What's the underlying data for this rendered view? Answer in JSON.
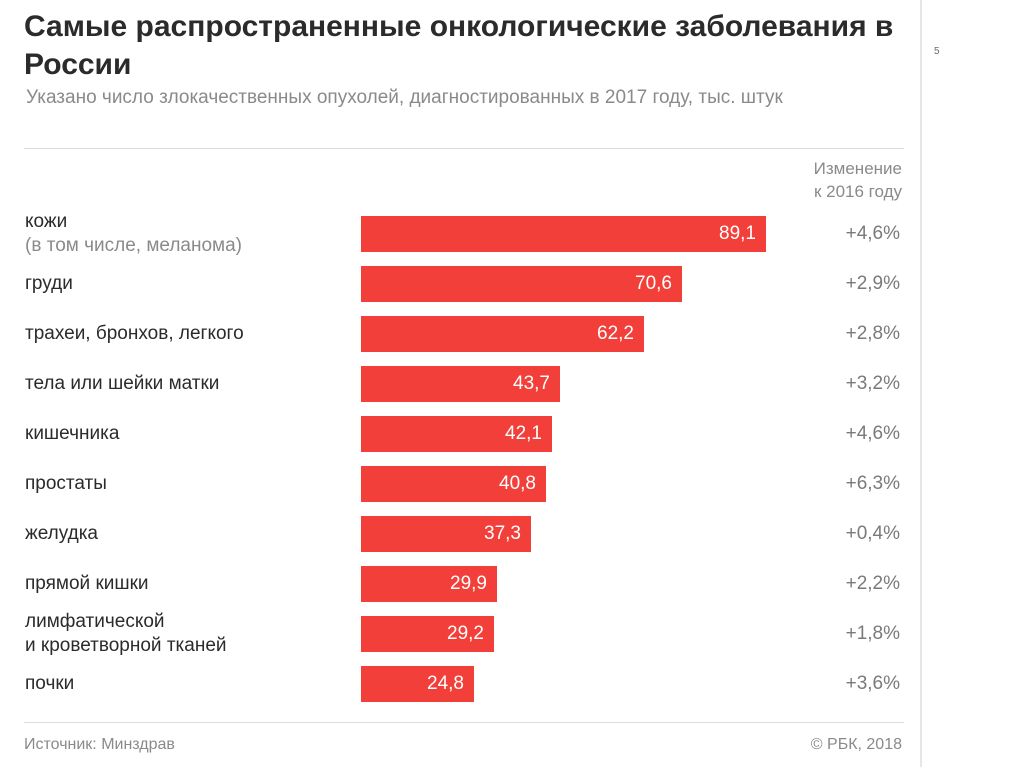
{
  "page_number": "5",
  "chart_data": {
    "type": "bar",
    "orientation": "horizontal",
    "title": "Самые распространенные онкологические заболевания в России",
    "subtitle": "Указано число злокачественных опухолей, диагностированных в 2017 году, тыс. штук",
    "change_header": [
      "Изменение",
      "к 2016 году"
    ],
    "categories": [
      {
        "label": "кожи",
        "sublabel": "(в том числе, меланома)"
      },
      {
        "label": "груди"
      },
      {
        "label": "трахеи, бронхов, легкого"
      },
      {
        "label": "тела или шейки матки"
      },
      {
        "label": "кишечника"
      },
      {
        "label": "простаты"
      },
      {
        "label": "желудка"
      },
      {
        "label": "прямой кишки"
      },
      {
        "label": "лимфатической",
        "label2": "и кроветворной тканей"
      },
      {
        "label": "почки"
      }
    ],
    "values": [
      89.1,
      70.6,
      62.2,
      43.7,
      42.1,
      40.8,
      37.3,
      29.9,
      29.2,
      24.8
    ],
    "value_labels": [
      "89,1",
      "70,6",
      "62,2",
      "43,7",
      "42,1",
      "40,8",
      "37,3",
      "29,9",
      "29,2",
      "24,8"
    ],
    "changes": [
      "+4,6%",
      "+2,9%",
      "+2,8%",
      "+3,2%",
      "+4,6%",
      "+6,3%",
      "+0,4%",
      "+2,2%",
      "+1,8%",
      "+3,6%"
    ],
    "bar_color": "#f23f3a",
    "xlim": [
      0,
      89.1
    ]
  },
  "footer": {
    "source": "Источник: Минздрав",
    "copyright": "© РБК, 2018"
  }
}
